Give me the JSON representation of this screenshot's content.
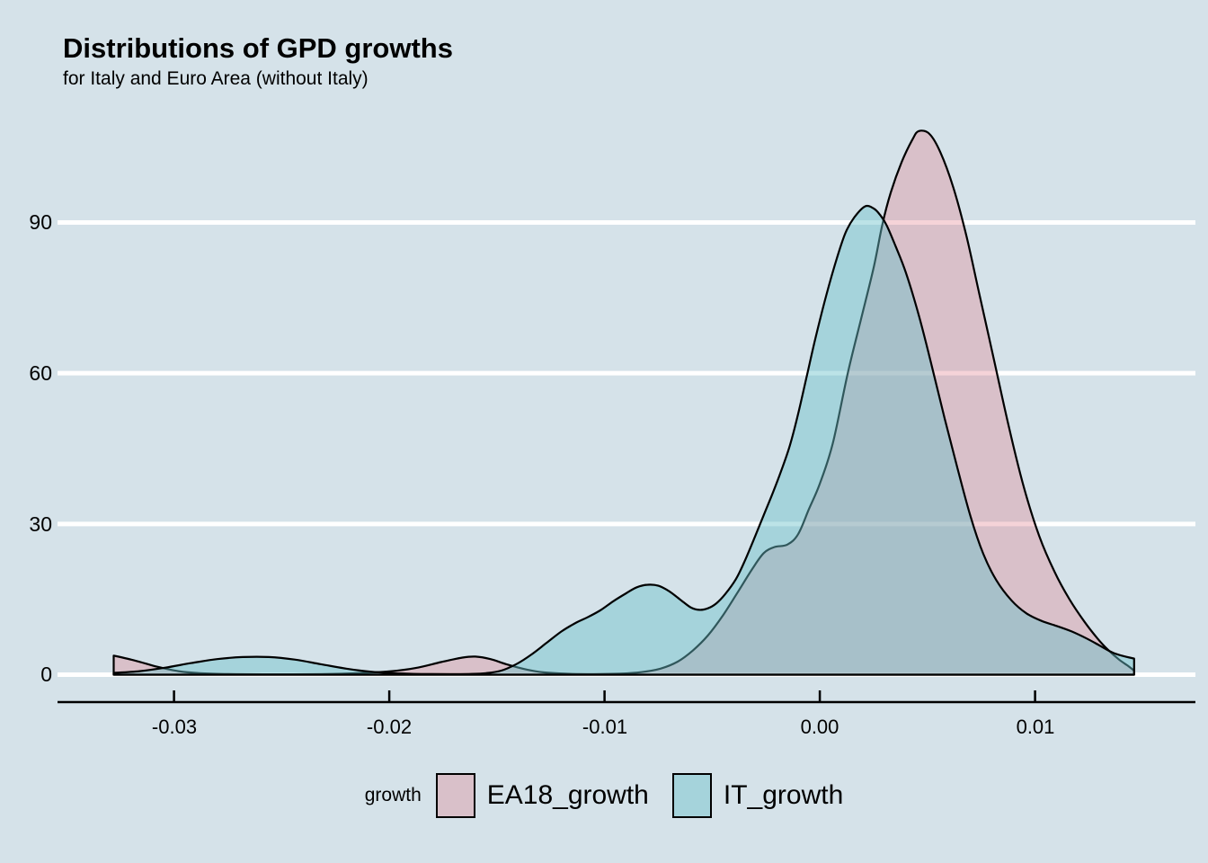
{
  "title": "Distributions of GPD growths",
  "subtitle": "for Italy and Euro Area (without Italy)",
  "colors": {
    "background": "#d5e2e9",
    "gridline": "#ffffff",
    "axis_line": "#000000",
    "text": "#000000"
  },
  "legend": {
    "title": "growth"
  },
  "chart_data": {
    "type": "area",
    "title": "Distributions of GPD growths",
    "subtitle": "for Italy and Euro Area (without Italy)",
    "legend_title": "growth",
    "legend_position": "bottom",
    "grid": "horizontal-white",
    "x_axis": {
      "ticks": [
        -0.03,
        -0.02,
        -0.01,
        0.0,
        0.01
      ],
      "tick_labels": [
        "-0.03",
        "-0.02",
        "-0.01",
        "0.00",
        "0.01"
      ],
      "range": [
        -0.0328,
        0.0146
      ]
    },
    "y_axis": {
      "ticks": [
        0,
        30,
        60,
        90
      ],
      "tick_labels": [
        "0",
        "30",
        "60",
        "90"
      ],
      "range": [
        0,
        112
      ]
    },
    "series": [
      {
        "name": "EA18_growth",
        "fill": "#e2808e",
        "fill_opacity": 0.35,
        "stroke": "#000000",
        "stroke_width": 2.2,
        "points": [
          [
            -0.0328,
            3.8
          ],
          [
            -0.0318,
            2.8
          ],
          [
            -0.0308,
            1.6
          ],
          [
            -0.0298,
            0.7
          ],
          [
            -0.0288,
            0.3
          ],
          [
            -0.0272,
            0.12
          ],
          [
            -0.0252,
            0.08
          ],
          [
            -0.0232,
            0.12
          ],
          [
            -0.0215,
            0.3
          ],
          [
            -0.02,
            0.65
          ],
          [
            -0.0188,
            1.3
          ],
          [
            -0.0176,
            2.5
          ],
          [
            -0.0166,
            3.4
          ],
          [
            -0.016,
            3.6
          ],
          [
            -0.0153,
            3.1
          ],
          [
            -0.0145,
            2.0
          ],
          [
            -0.0136,
            1.0
          ],
          [
            -0.0128,
            0.45
          ],
          [
            -0.0118,
            0.2
          ],
          [
            -0.0105,
            0.12
          ],
          [
            -0.0093,
            0.2
          ],
          [
            -0.0083,
            0.5
          ],
          [
            -0.0074,
            1.2
          ],
          [
            -0.0066,
            2.6
          ],
          [
            -0.0059,
            4.8
          ],
          [
            -0.0052,
            7.8
          ],
          [
            -0.0045,
            11.8
          ],
          [
            -0.0038,
            16.5
          ],
          [
            -0.0031,
            21.3
          ],
          [
            -0.0026,
            24.2
          ],
          [
            -0.0021,
            25.4
          ],
          [
            -0.0015,
            25.9
          ],
          [
            -0.001,
            28.0
          ],
          [
            -0.0005,
            33.0
          ],
          [
            0.0,
            38.0
          ],
          [
            0.0006,
            46.0
          ],
          [
            0.0013,
            60.0
          ],
          [
            0.0019,
            70.5
          ],
          [
            0.0025,
            81.0
          ],
          [
            0.0029,
            89.5
          ],
          [
            0.0033,
            96.0
          ],
          [
            0.0038,
            102.0
          ],
          [
            0.0043,
            106.5
          ],
          [
            0.0046,
            108.2
          ],
          [
            0.0051,
            107.6
          ],
          [
            0.0056,
            104.0
          ],
          [
            0.0062,
            97.0
          ],
          [
            0.0068,
            87.5
          ],
          [
            0.0074,
            76.0
          ],
          [
            0.0081,
            62.5
          ],
          [
            0.0088,
            49.0
          ],
          [
            0.0095,
            37.0
          ],
          [
            0.0102,
            27.5
          ],
          [
            0.0109,
            20.5
          ],
          [
            0.0116,
            15.0
          ],
          [
            0.0123,
            10.5
          ],
          [
            0.0129,
            7.2
          ],
          [
            0.0134,
            4.9
          ],
          [
            0.0139,
            3.0
          ],
          [
            0.0143,
            1.8
          ],
          [
            0.0146,
            0.8
          ]
        ]
      },
      {
        "name": "IT_growth",
        "fill": "#6ac0ca",
        "fill_opacity": 0.45,
        "stroke": "#000000",
        "stroke_width": 2.2,
        "points": [
          [
            -0.0328,
            0.35
          ],
          [
            -0.0316,
            0.7
          ],
          [
            -0.0304,
            1.4
          ],
          [
            -0.0292,
            2.3
          ],
          [
            -0.028,
            3.1
          ],
          [
            -0.0268,
            3.5
          ],
          [
            -0.0256,
            3.5
          ],
          [
            -0.0244,
            3.0
          ],
          [
            -0.0232,
            2.1
          ],
          [
            -0.022,
            1.2
          ],
          [
            -0.0209,
            0.6
          ],
          [
            -0.0198,
            0.3
          ],
          [
            -0.0185,
            0.15
          ],
          [
            -0.0172,
            0.12
          ],
          [
            -0.0163,
            0.15
          ],
          [
            -0.0155,
            0.3
          ],
          [
            -0.0148,
            0.8
          ],
          [
            -0.0141,
            2.1
          ],
          [
            -0.0134,
            4.0
          ],
          [
            -0.0127,
            6.3
          ],
          [
            -0.012,
            8.6
          ],
          [
            -0.0113,
            10.4
          ],
          [
            -0.0108,
            11.4
          ],
          [
            -0.0102,
            12.8
          ],
          [
            -0.0096,
            14.6
          ],
          [
            -0.009,
            16.2
          ],
          [
            -0.0085,
            17.4
          ],
          [
            -0.008,
            17.9
          ],
          [
            -0.0075,
            17.7
          ],
          [
            -0.007,
            16.6
          ],
          [
            -0.0065,
            15.0
          ],
          [
            -0.006,
            13.4
          ],
          [
            -0.0056,
            12.9
          ],
          [
            -0.0052,
            13.2
          ],
          [
            -0.0048,
            14.2
          ],
          [
            -0.0044,
            16.0
          ],
          [
            -0.0039,
            19.0
          ],
          [
            -0.0035,
            22.5
          ],
          [
            -0.003,
            27.6
          ],
          [
            -0.0026,
            31.8
          ],
          [
            -0.0022,
            36.0
          ],
          [
            -0.0018,
            40.5
          ],
          [
            -0.0014,
            45.5
          ],
          [
            -0.001,
            52.0
          ],
          [
            -0.0006,
            59.5
          ],
          [
            -0.0002,
            67.0
          ],
          [
            0.0003,
            75.5
          ],
          [
            0.0008,
            83.0
          ],
          [
            0.0012,
            88.0
          ],
          [
            0.0016,
            91.0
          ],
          [
            0.0021,
            93.2
          ],
          [
            0.0025,
            92.8
          ],
          [
            0.0028,
            91.5
          ],
          [
            0.0031,
            89.5
          ],
          [
            0.0035,
            85.5
          ],
          [
            0.004,
            80.0
          ],
          [
            0.0046,
            71.5
          ],
          [
            0.0052,
            61.5
          ],
          [
            0.0058,
            51.0
          ],
          [
            0.0064,
            41.0
          ],
          [
            0.007,
            31.5
          ],
          [
            0.0076,
            24.0
          ],
          [
            0.0082,
            18.8
          ],
          [
            0.0089,
            14.8
          ],
          [
            0.0096,
            12.2
          ],
          [
            0.0103,
            10.7
          ],
          [
            0.011,
            9.7
          ],
          [
            0.0117,
            8.6
          ],
          [
            0.0124,
            7.2
          ],
          [
            0.013,
            5.8
          ],
          [
            0.0136,
            4.4
          ],
          [
            0.0141,
            3.7
          ],
          [
            0.0146,
            3.2
          ]
        ]
      }
    ]
  }
}
